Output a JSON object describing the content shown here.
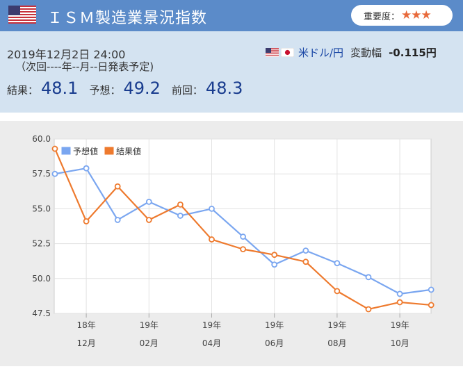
{
  "header": {
    "title": "ＩＳＭ製造業景況指数",
    "importance_label": "重要度：",
    "importance_stars": "★★★",
    "flag_icon": "us-flag-icon"
  },
  "info": {
    "date": "2019年12月2日 24:00",
    "next_release": "（次回----年--月--日発表予定)",
    "pair_name": "米ドル/円",
    "change_label": "変動幅",
    "change_value": "-0.115円",
    "result_label": "結果：",
    "result_value": "48.1",
    "forecast_label": "予想：",
    "forecast_value": "49.2",
    "previous_label": "前回：",
    "previous_value": "48.3"
  },
  "colors": {
    "header_bg": "#5b8bc9",
    "info_bg": "#d4e3f1",
    "forecast_series": "#7aa6f0",
    "result_series": "#ee7a2e",
    "value_text": "#1a3d8f"
  },
  "chart_data": {
    "type": "line",
    "ylim": [
      47.5,
      60.0
    ],
    "yticks": [
      "60.0",
      "57.5",
      "55.0",
      "52.5",
      "50.0",
      "47.5"
    ],
    "xticks": [
      {
        "year": "18年",
        "month": "12月"
      },
      {
        "year": "19年",
        "month": "02月"
      },
      {
        "year": "19年",
        "month": "04月"
      },
      {
        "year": "19年",
        "month": "06月"
      },
      {
        "year": "19年",
        "month": "08月"
      },
      {
        "year": "19年",
        "month": "10月"
      }
    ],
    "legend_position": "top-left",
    "grid": true,
    "series": [
      {
        "name": "予想値",
        "color": "#7aa6f0",
        "values": [
          57.5,
          57.9,
          54.2,
          55.5,
          54.5,
          55.0,
          53.0,
          51.0,
          52.0,
          51.1,
          50.1,
          48.9,
          49.2
        ]
      },
      {
        "name": "結果値",
        "color": "#ee7a2e",
        "values": [
          59.3,
          54.1,
          56.6,
          54.2,
          55.3,
          52.8,
          52.1,
          51.7,
          51.2,
          49.1,
          47.8,
          48.3,
          48.1
        ]
      }
    ]
  }
}
